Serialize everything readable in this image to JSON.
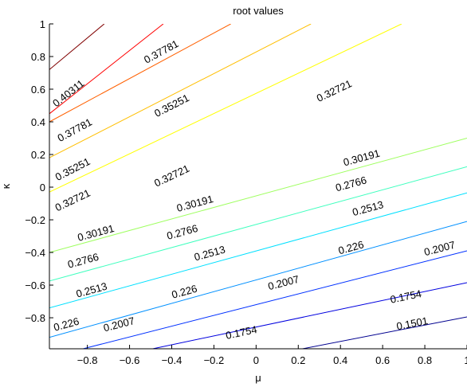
{
  "chart_data": {
    "type": "contour",
    "title": "root values",
    "xlabel": "μ",
    "ylabel": "κ",
    "xlim": [
      -0.98,
      1.0
    ],
    "ylim": [
      -0.99,
      1.0
    ],
    "x_ticks": [
      -0.8,
      -0.6,
      -0.4,
      -0.2,
      0,
      0.2,
      0.4,
      0.6,
      0.8,
      1
    ],
    "x_tick_labels": [
      "−0.8",
      "−0.6",
      "−0.4",
      "−0.2",
      "0",
      "0.2",
      "0.4",
      "0.6",
      "0.8",
      "1"
    ],
    "y_ticks": [
      -0.8,
      -0.6,
      -0.4,
      -0.2,
      0,
      0.2,
      0.4,
      0.6,
      0.8,
      1
    ],
    "y_tick_labels": [
      "−0.8",
      "−0.6",
      "−0.4",
      "−0.2",
      "0",
      "0.2",
      "0.4",
      "0.6",
      "0.8",
      "1"
    ],
    "grid": false,
    "levels": [
      {
        "value": "0.1501",
        "color": "#00008f",
        "points": [
          [
            0.22,
            -0.99
          ],
          [
            1.0,
            -0.795
          ]
        ],
        "labels": [
          {
            "x": 0.74,
            "y": -0.835
          }
        ]
      },
      {
        "value": "0.1754",
        "color": "#0000df",
        "points": [
          [
            -0.49,
            -0.99
          ],
          [
            1.0,
            -0.585
          ]
        ],
        "labels": [
          {
            "x": -0.07,
            "y": -0.89
          },
          {
            "x": 0.71,
            "y": -0.67
          }
        ]
      },
      {
        "value": "0.2007",
        "color": "#0030ff",
        "points": [
          [
            -0.82,
            -0.99
          ],
          [
            1.0,
            -0.39
          ]
        ],
        "labels": [
          {
            "x": -0.65,
            "y": -0.84
          },
          {
            "x": 0.13,
            "y": -0.585
          },
          {
            "x": 0.87,
            "y": -0.375
          }
        ]
      },
      {
        "value": "0.226",
        "color": "#0090ff",
        "points": [
          [
            -0.98,
            -0.92
          ],
          [
            1.0,
            -0.21
          ]
        ],
        "labels": [
          {
            "x": -0.9,
            "y": -0.84
          },
          {
            "x": -0.34,
            "y": -0.64
          },
          {
            "x": 0.45,
            "y": -0.37
          }
        ]
      },
      {
        "value": "0.2513",
        "color": "#00e0ff",
        "points": [
          [
            -0.98,
            -0.74
          ],
          [
            1.0,
            -0.035
          ]
        ],
        "labels": [
          {
            "x": -0.78,
            "y": -0.63
          },
          {
            "x": -0.22,
            "y": -0.405
          },
          {
            "x": 0.53,
            "y": -0.13
          }
        ]
      },
      {
        "value": "0.2766",
        "color": "#40ffbf",
        "points": [
          [
            -0.98,
            -0.575
          ],
          [
            1.0,
            0.125
          ]
        ],
        "labels": [
          {
            "x": -0.82,
            "y": -0.45
          },
          {
            "x": -0.35,
            "y": -0.275
          },
          {
            "x": 0.45,
            "y": 0.02
          }
        ]
      },
      {
        "value": "0.30191",
        "color": "#9fff60",
        "points": [
          [
            -0.98,
            -0.4
          ],
          [
            1.0,
            0.3
          ]
        ],
        "labels": [
          {
            "x": -0.76,
            "y": -0.28
          },
          {
            "x": -0.29,
            "y": -0.1
          },
          {
            "x": 0.5,
            "y": 0.18
          }
        ]
      },
      {
        "value": "0.32721",
        "color": "#ffff00",
        "points": [
          [
            -0.98,
            -0.03
          ],
          [
            0.69,
            1.0
          ]
        ],
        "labels": [
          {
            "x": -0.87,
            "y": -0.08
          },
          {
            "x": -0.4,
            "y": 0.07
          },
          {
            "x": 0.37,
            "y": 0.59
          }
        ]
      },
      {
        "value": "0.35251",
        "color": "#ffbf00",
        "points": [
          [
            -0.98,
            0.18
          ],
          [
            0.26,
            1.0
          ]
        ],
        "labels": [
          {
            "x": -0.87,
            "y": 0.11
          },
          {
            "x": -0.4,
            "y": 0.5
          }
        ]
      },
      {
        "value": "0.37781",
        "color": "#ff6000",
        "points": [
          [
            -0.98,
            0.4
          ],
          [
            -0.12,
            1.0
          ]
        ],
        "labels": [
          {
            "x": -0.86,
            "y": 0.35
          },
          {
            "x": -0.45,
            "y": 0.83
          }
        ]
      },
      {
        "value": "0.40311",
        "color": "#ff0000",
        "points": [
          [
            -0.98,
            0.45
          ],
          [
            -0.44,
            1.0
          ]
        ],
        "labels": [
          {
            "x": -0.89,
            "y": 0.575
          }
        ]
      },
      {
        "value": "",
        "color": "#800000",
        "points": [
          [
            -0.98,
            0.72
          ],
          [
            -0.72,
            1.0
          ]
        ],
        "labels": []
      }
    ]
  }
}
